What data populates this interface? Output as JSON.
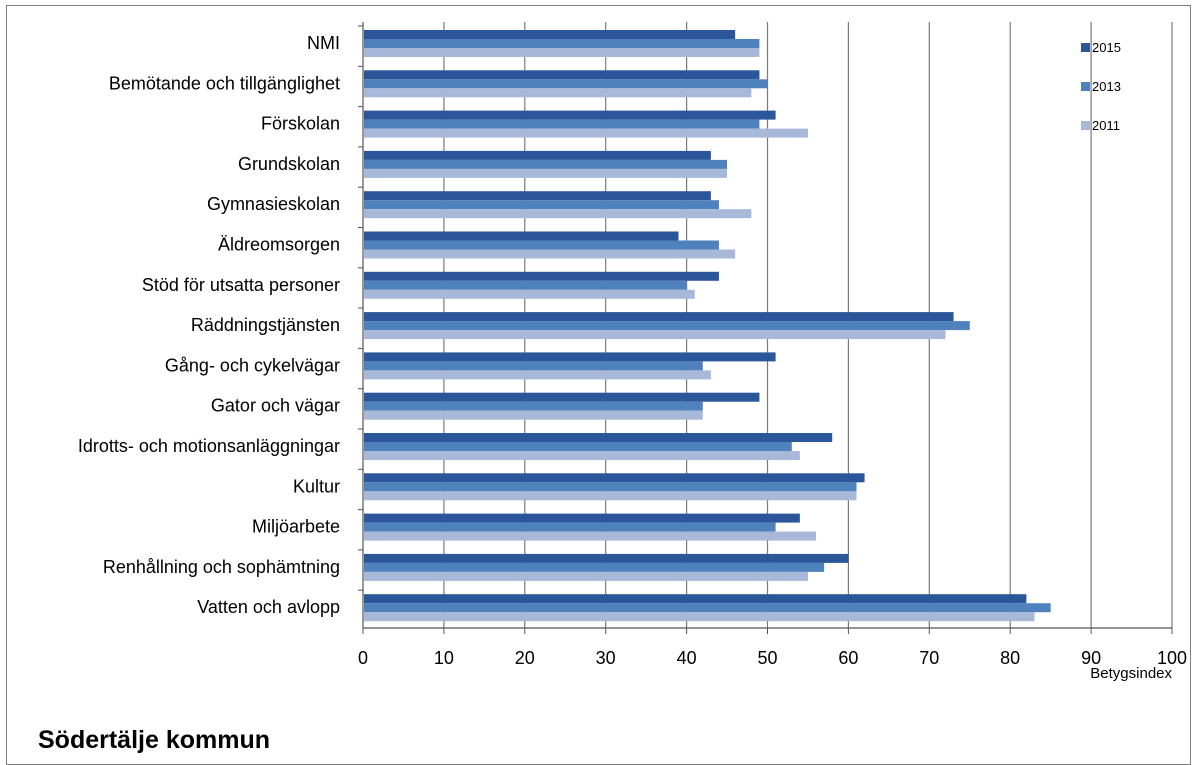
{
  "chart_data": {
    "type": "bar",
    "orientation": "horizontal",
    "categories": [
      "NMI",
      "Bemötande och tillgänglighet",
      "Förskolan",
      "Grundskolan",
      "Gymnasieskolan",
      "Äldreomsorgen",
      "Stöd för utsatta personer",
      "Räddningstjänsten",
      "Gång- och cykelvägar",
      "Gator och vägar",
      "Idrotts- och motionsanläggningar",
      "Kultur",
      "Miljöarbete",
      "Renhållning och sophämtning",
      "Vatten och avlopp"
    ],
    "series": [
      {
        "name": "2015",
        "color": "#2c569a",
        "values": [
          46,
          49,
          51,
          43,
          43,
          39,
          44,
          73,
          51,
          49,
          58,
          62,
          54,
          60,
          82
        ]
      },
      {
        "name": "2013",
        "color": "#4f81bd",
        "values": [
          49,
          50,
          49,
          45,
          44,
          44,
          40,
          75,
          42,
          42,
          53,
          61,
          51,
          57,
          85
        ]
      },
      {
        "name": "2011",
        "color": "#a7b8d8",
        "values": [
          49,
          48,
          55,
          45,
          48,
          46,
          41,
          72,
          43,
          42,
          54,
          61,
          56,
          55,
          83
        ]
      }
    ],
    "xlabel": "Betygsindex",
    "xlim": [
      0,
      100
    ],
    "xticks": [
      "0",
      "10",
      "20",
      "30",
      "40",
      "50",
      "60",
      "70",
      "80",
      "90",
      "100"
    ],
    "grid": true,
    "legend_position": "top-right"
  },
  "footer": {
    "title": "Södertälje kommun"
  }
}
